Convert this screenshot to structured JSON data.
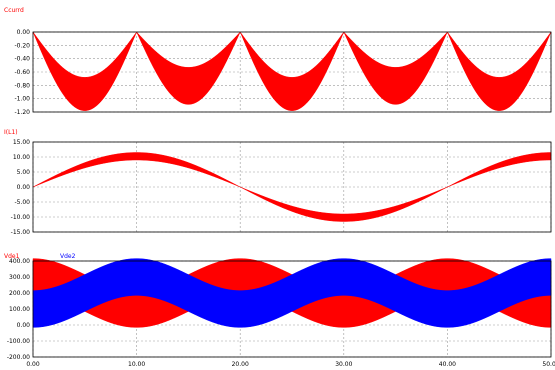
{
  "colors": {
    "red": "#ff0000",
    "blue": "#0000ff",
    "grid": "#9a9a9a",
    "frame": "#000000"
  },
  "chart_data": [
    {
      "type": "area",
      "series": [
        {
          "name": "Ccurrd",
          "color": "#ff0000",
          "description": "abs(sin) envelope band, period 10, top 0, bottom ranging -0.85 to -1.2",
          "envelope_low_x": [
            0,
            5,
            10,
            15,
            20,
            25,
            30,
            35,
            40,
            45,
            50
          ],
          "envelope_low_y": [
            0,
            -1.2,
            0,
            -0.9,
            0,
            -1.2,
            0,
            -0.9,
            0,
            -1.2,
            0
          ],
          "envelope_high_x": [
            0,
            5,
            10,
            15,
            20,
            25,
            30,
            35,
            40,
            45,
            50
          ],
          "envelope_high_y": [
            0,
            -0.85,
            0,
            -0.65,
            0,
            -0.85,
            0,
            -0.65,
            0,
            -0.85,
            0
          ]
        }
      ],
      "x": [
        0,
        10,
        20,
        30,
        40,
        50
      ],
      "xticks": [
        "0.00",
        "10.00",
        "20.00",
        "30.00",
        "40.00",
        "50.00"
      ],
      "yticks": [
        "0.00",
        "-0.20",
        "-0.40",
        "-0.60",
        "-0.80",
        "-1.00",
        "-1.20"
      ],
      "ylim": [
        -1.2,
        0
      ],
      "xlim": [
        0,
        50
      ],
      "grid": true
    },
    {
      "type": "area",
      "series": [
        {
          "name": "I(L1)",
          "color": "#ff0000",
          "description": "sin band, period 20, amplitude outer 11.5 inner ~9"
        }
      ],
      "x": [
        0,
        10,
        20,
        30,
        40,
        50
      ],
      "xticks": [
        "0.00",
        "10.00",
        "20.00",
        "30.00",
        "40.00",
        "50.00"
      ],
      "yticks": [
        "15.00",
        "10.00",
        "5.00",
        "0.00",
        "-5.00",
        "-10.00",
        "-15.00"
      ],
      "ylim": [
        -15,
        15
      ],
      "xlim": [
        0,
        50
      ],
      "grid": true
    },
    {
      "type": "area",
      "series": [
        {
          "name": "Vde1",
          "color": "#ff0000",
          "description": "band centered 200, swings between ~50 and ~350 with period 20 (max at 0,20,40; min at 10,30,50)"
        },
        {
          "name": "Vde2",
          "color": "#0000ff",
          "description": "band centered 200, opposite phase (min at 0,20,40; max at 10,30,50)"
        }
      ],
      "x": [
        0,
        10,
        20,
        30,
        40,
        50
      ],
      "xticks": [
        "0.00",
        "10.00",
        "20.00",
        "30.00",
        "40.00",
        "50.00"
      ],
      "yticks": [
        "400.00",
        "300.00",
        "200.00",
        "100.00",
        "0.00",
        "-100.00",
        "-200.00"
      ],
      "ylim": [
        -200,
        400
      ],
      "xlim": [
        0,
        50
      ],
      "grid": true
    }
  ]
}
